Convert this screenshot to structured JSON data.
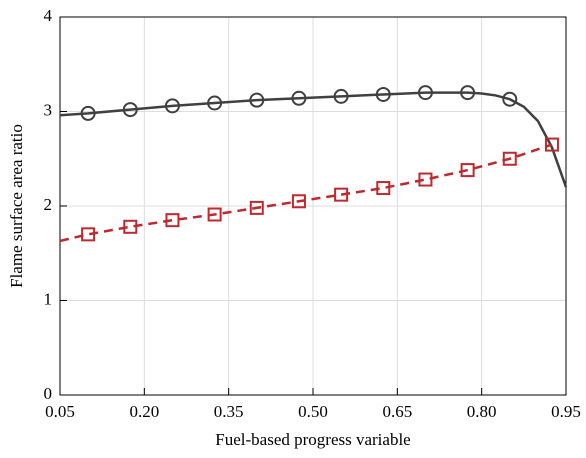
{
  "chart_data": {
    "type": "line",
    "x_label": "Fuel-based progress variable",
    "y_label": "Flame surface area ratio",
    "xlim": [
      0.05,
      0.95
    ],
    "xticks": [
      0.05,
      {
        "value": 0.2,
        "label": "0.20"
      },
      0.35,
      {
        "value": 0.5,
        "label": "0.50"
      },
      0.65,
      {
        "value": 0.8,
        "label": "0.80"
      },
      0.95
    ],
    "ylim": [
      0,
      4
    ],
    "yticks": [
      0,
      1,
      2,
      3,
      4
    ],
    "grid": true,
    "series": [
      {
        "color": "#404040",
        "line_style": "solid",
        "marker": "circle",
        "x": [
          0.05,
          0.1,
          0.175,
          0.25,
          0.325,
          0.4,
          0.475,
          0.55,
          0.625,
          0.7,
          0.775,
          0.8,
          0.825,
          0.85,
          0.875,
          0.9,
          0.925,
          0.95
        ],
        "values": [
          2.96,
          2.98,
          3.02,
          3.06,
          3.09,
          3.12,
          3.14,
          3.16,
          3.18,
          3.2,
          3.2,
          3.19,
          3.17,
          3.13,
          3.05,
          2.9,
          2.62,
          2.2
        ],
        "markers": {
          "x": [
            0.1,
            0.175,
            0.25,
            0.325,
            0.4,
            0.475,
            0.55,
            0.625,
            0.7,
            0.775,
            0.85
          ],
          "values": [
            2.98,
            3.02,
            3.06,
            3.09,
            3.12,
            3.14,
            3.16,
            3.18,
            3.2,
            3.2,
            3.13
          ]
        }
      },
      {
        "color": "#c0282d",
        "line_style": "dashed",
        "marker": "square",
        "x": [
          0.05,
          0.1,
          0.175,
          0.25,
          0.325,
          0.4,
          0.475,
          0.55,
          0.625,
          0.7,
          0.775,
          0.85,
          0.925
        ],
        "values": [
          1.63,
          1.7,
          1.78,
          1.85,
          1.91,
          1.98,
          2.05,
          2.12,
          2.19,
          2.28,
          2.38,
          2.5,
          2.65
        ],
        "markers": {
          "x": [
            0.1,
            0.175,
            0.25,
            0.325,
            0.4,
            0.475,
            0.55,
            0.625,
            0.7,
            0.775,
            0.85,
            0.925
          ],
          "values": [
            1.7,
            1.78,
            1.85,
            1.91,
            1.98,
            2.05,
            2.12,
            2.19,
            2.28,
            2.38,
            2.5,
            2.65
          ]
        }
      }
    ]
  }
}
